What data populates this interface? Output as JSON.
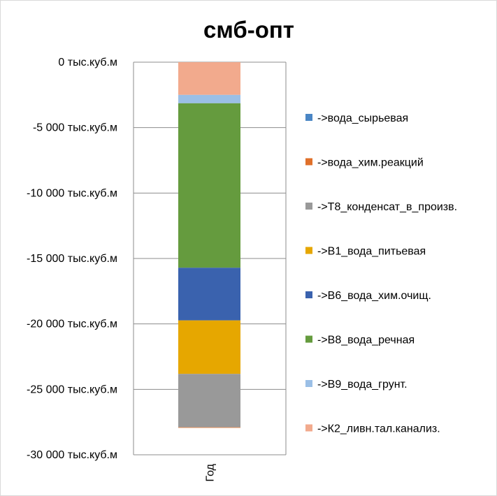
{
  "chart_data": {
    "type": "bar",
    "stacked": true,
    "title": "смб-опт",
    "xlabel": "",
    "ylabel": "",
    "categories": [
      "Год"
    ],
    "ylim": [
      -30000,
      0
    ],
    "yticks": [
      {
        "value": 0,
        "label": "0 тыс.куб.м"
      },
      {
        "value": -5000,
        "label": "-5 000 тыс.куб.м"
      },
      {
        "value": -10000,
        "label": "-10 000 тыс.куб.м"
      },
      {
        "value": -15000,
        "label": "-15 000 тыс.куб.м"
      },
      {
        "value": -20000,
        "label": "-20 000 тыс.куб.м"
      },
      {
        "value": -25000,
        "label": "-25 000 тыс.куб.м"
      },
      {
        "value": -30000,
        "label": "-30 000 тыс.куб.м"
      }
    ],
    "grid": true,
    "legend_position": "right",
    "series": [
      {
        "name": "->вода_сырьевая",
        "color": "#4a86c5",
        "values": [
          0
        ]
      },
      {
        "name": "->вода_хим.реакций",
        "color": "#e0702a",
        "values": [
          -40
        ]
      },
      {
        "name": "->Т8_конденсат_в_произв.",
        "color": "#999999",
        "values": [
          -4080
        ]
      },
      {
        "name": "->В1_вода_питьевая",
        "color": "#e6a700",
        "values": [
          -4090
        ]
      },
      {
        "name": "->В6_вода_хим.очищ.",
        "color": "#3a62ae",
        "values": [
          -4020
        ]
      },
      {
        "name": "->В8_вода_речная",
        "color": "#659b3e",
        "values": [
          -12570
        ]
      },
      {
        "name": "->В9_вода_грунт.",
        "color": "#9bbfe6",
        "values": [
          -640
        ]
      },
      {
        "name": "->К2_ливн.тал.канализ.",
        "color": "#f2aa8d",
        "values": [
          -2500
        ]
      }
    ]
  }
}
